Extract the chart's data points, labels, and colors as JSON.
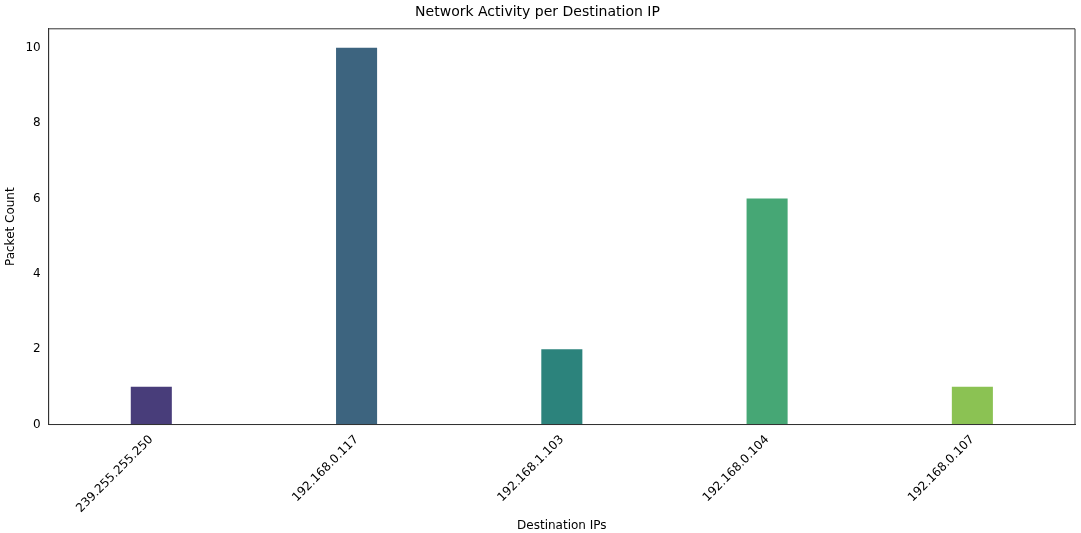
{
  "chart_data": {
    "type": "bar",
    "title": "Network Activity per Destination IP",
    "xlabel": "Destination IPs",
    "ylabel": "Packet Count",
    "categories": [
      "239.255.255.250",
      "192.168.0.117",
      "192.168.1.103",
      "192.168.0.104",
      "192.168.0.107"
    ],
    "values": [
      1,
      10,
      2,
      6,
      1
    ],
    "colors": [
      "#483d7a",
      "#3d647f",
      "#2c837c",
      "#46a775",
      "#8bc253"
    ],
    "ylim": [
      0,
      10.5
    ],
    "yticks": [
      0,
      2,
      4,
      6,
      8,
      10
    ],
    "grid": false,
    "legend": false
  }
}
